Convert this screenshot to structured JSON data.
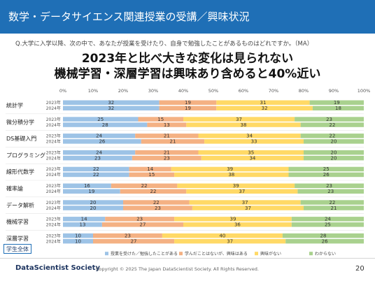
{
  "header": {
    "title": "数学・データサイエンス関連授業の受講／興味状況"
  },
  "question": "Q.大学に入学以降、次の中で、あなたが授業を受けたり、自身で勉強したことがあるものはどれですか。（MA）",
  "headline": {
    "line1": "2023年と比べ大きな変化は見られない",
    "line2": "機械学習・深層学習は興味あり含めると40%近い"
  },
  "scope_label": "学生全体",
  "footer": {
    "logo": "DataScientist Society",
    "copyright": "Copyright © 2025 The Japan DataScientist Society. All Rights Reserved.",
    "page": "20"
  },
  "chart_data": {
    "type": "bar",
    "orientation": "horizontal",
    "stacked": true,
    "x_ticks": [
      "0%",
      "10%",
      "20%",
      "30%",
      "40%",
      "50%",
      "60%",
      "70%",
      "80%",
      "90%",
      "100%"
    ],
    "xlim": [
      0,
      100
    ],
    "legend_position": "bottom",
    "legend": [
      "授業を受けた／勉強したことがある",
      "学んだことはないが、興味はある",
      "興味がない",
      "わからない"
    ],
    "colors": [
      "#9dc3e6",
      "#f4b183",
      "#ffd966",
      "#a9d18e"
    ],
    "year_labels": [
      "2023年",
      "2024年"
    ],
    "categories": [
      {
        "name": "統計学",
        "rows": [
          [
            32,
            19,
            31,
            19
          ],
          [
            32,
            19,
            32,
            18
          ]
        ]
      },
      {
        "name": "微分積分学",
        "rows": [
          [
            25,
            15,
            37,
            23
          ],
          [
            28,
            13,
            38,
            22
          ]
        ]
      },
      {
        "name": "DS基礎入門",
        "rows": [
          [
            24,
            21,
            34,
            22
          ],
          [
            26,
            21,
            33,
            20
          ]
        ]
      },
      {
        "name": "プログラミング",
        "rows": [
          [
            24,
            21,
            35,
            20
          ],
          [
            23,
            23,
            34,
            20
          ]
        ]
      },
      {
        "name": "線形代数学",
        "rows": [
          [
            22,
            14,
            39,
            25
          ],
          [
            22,
            15,
            38,
            26
          ]
        ]
      },
      {
        "name": "確率論",
        "rows": [
          [
            16,
            22,
            39,
            23
          ],
          [
            19,
            22,
            37,
            23
          ]
        ]
      },
      {
        "name": "データ解析",
        "rows": [
          [
            20,
            22,
            37,
            22
          ],
          [
            20,
            23,
            37,
            21
          ]
        ]
      },
      {
        "name": "機械学習",
        "rows": [
          [
            14,
            23,
            39,
            24
          ],
          [
            13,
            27,
            36,
            25
          ]
        ]
      },
      {
        "name": "深層学習",
        "rows": [
          [
            10,
            23,
            40,
            28
          ],
          [
            10,
            27,
            37,
            26
          ]
        ]
      }
    ]
  }
}
